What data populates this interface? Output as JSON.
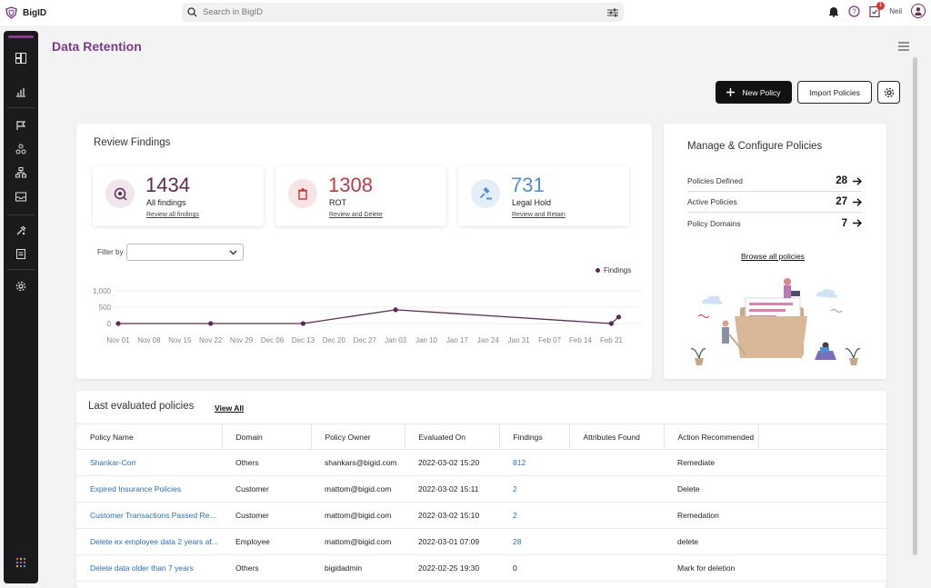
{
  "app": {
    "name": "BigID"
  },
  "search": {
    "placeholder": "Search in BigID"
  },
  "user": {
    "name": "Neil",
    "notification_count": "1"
  },
  "page": {
    "title": "Data Retention"
  },
  "actions": {
    "new_policy": "New Policy",
    "import_policies": "Import Policies"
  },
  "review": {
    "title": "Review Findings",
    "stats": [
      {
        "value": "1434",
        "label": "All findings",
        "link": "Review all findings",
        "color": "#5e2a54",
        "icon": "eye-scan-icon"
      },
      {
        "value": "1308",
        "label": "ROT",
        "link": "Review and Delete",
        "color": "#c0393f",
        "icon": "trash-icon"
      },
      {
        "value": "731",
        "label": "Legal Hold",
        "link": "Review and Retain",
        "color": "#4f8fd8",
        "icon": "gavel-icon"
      }
    ],
    "filter_label": "Filter by",
    "legend": "Findings"
  },
  "chart_data": {
    "type": "line",
    "series": [
      {
        "name": "Findings",
        "color": "#5e2a54",
        "points": [
          [
            "Nov 01",
            0
          ],
          [
            "Nov 22",
            0
          ],
          [
            "Dec 13",
            0
          ],
          [
            "Jan 03",
            420
          ],
          [
            "Feb 21",
            0
          ],
          [
            "Feb 22",
            200
          ]
        ]
      }
    ],
    "x_labels": [
      "Nov 01",
      "Nov 08",
      "Nov 15",
      "Nov 22",
      "Nov 29",
      "Dec 06",
      "Dec 13",
      "Dec 20",
      "Dec 27",
      "Jan 03",
      "Jan 10",
      "Jan 17",
      "Jan 24",
      "Jan 31",
      "Feb 07",
      "Feb 14",
      "Feb 21"
    ],
    "y_ticks": [
      "1,000",
      "500",
      "0"
    ],
    "ylim": [
      0,
      1000
    ]
  },
  "manage": {
    "title": "Manage & Configure Policies",
    "rows": [
      {
        "label": "Policies Defined",
        "value": "28"
      },
      {
        "label": "Active Policies",
        "value": "27"
      },
      {
        "label": "Policy Domains",
        "value": "7"
      }
    ],
    "browse": "Browse all policies"
  },
  "policies": {
    "title": "Last evaluated policies",
    "view_all": "View All",
    "columns": [
      "Policy Name",
      "Domain",
      "Policy Owner",
      "Evaluated On",
      "Findings",
      "Attributes Found",
      "Action Recommended",
      ""
    ],
    "rows": [
      [
        "Shankar-Corr",
        "Others",
        "shankars@bigid.com",
        "2022-03-02 15:20",
        "812",
        "",
        "Remediate"
      ],
      [
        "Expired Insurance Policies",
        "Customer",
        "mattom@bigid.com",
        "2022-03-02 15:11",
        "2",
        "",
        "Delete"
      ],
      [
        "Customer Transactions Passed Re...",
        "Customer",
        "mattom@bigid.com",
        "2022-03-02 15:10",
        "2",
        "",
        "Remedation"
      ],
      [
        "Delete ex employee data 2 years af...",
        "Employee",
        "mattom@bigid.com",
        "2022-03-01 07:09",
        "28",
        "",
        "delete"
      ],
      [
        "Delete data older than 7 years",
        "Others",
        "bigidadmin",
        "2022-02-25 19:30",
        "0",
        "",
        "Mark for deletion"
      ]
    ]
  }
}
